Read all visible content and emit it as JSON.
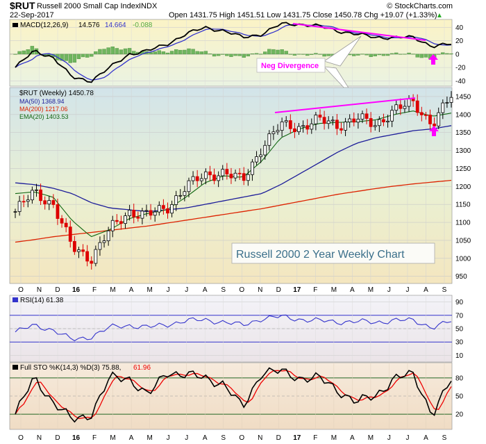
{
  "header": {
    "symbol": "$RUT",
    "name": "Russell 2000 Small Cap Index",
    "exchange": "INDX",
    "date": "22-Sep-2017",
    "ohlc": "Open 1431.75  High 1451.51  Low 1431.75  Close 1450.78  Chg +19.07 (+1.33%)",
    "change_arrow": "▲",
    "credit": "© StockCharts.com"
  },
  "macd": {
    "legend_title": "MACD(12,26,9)",
    "macd_value": "14.576",
    "signal_value": "14.664",
    "hist_value": "-0.088",
    "colors": {
      "macd": "#000000",
      "signal": "#3333cc",
      "hist": "#55aa44",
      "divergence": "#ff00ff"
    },
    "y_ticks": [
      40,
      20,
      0,
      -20,
      -40
    ],
    "ylim": [
      -48,
      52
    ]
  },
  "annotations": {
    "neg_divergence": "Neg Divergence",
    "chart_title": "Russell 2000 2 Year Weekly Chart"
  },
  "price": {
    "legend_title": "$RUT (Weekly) 1450.78",
    "ma50": "MA(50) 1368.94",
    "ma200": "MA(200) 1217.06",
    "ema20": "EMA(20) 1403.53",
    "colors": {
      "ma50": "#1c1c99",
      "ma200": "#dd2200",
      "ema20": "#116611",
      "up": "#000000",
      "down": "#dd0000"
    },
    "y_ticks": [
      1450,
      1400,
      1350,
      1300,
      1250,
      1200,
      1150,
      1100,
      1050,
      1000,
      950
    ],
    "ylim": [
      930,
      1475
    ]
  },
  "month_labels": [
    "O",
    "N",
    "D",
    "16",
    "F",
    "M",
    "A",
    "M",
    "J",
    "J",
    "A",
    "S",
    "O",
    "N",
    "D",
    "17",
    "F",
    "M",
    "A",
    "M",
    "J",
    "J",
    "A",
    "S"
  ],
  "rsi": {
    "legend": "RSI(14) 61.38",
    "y_ticks": [
      90,
      70,
      50,
      30,
      10
    ],
    "levels": [
      70,
      30
    ],
    "color": "#3333cc"
  },
  "sto": {
    "legend_k": "Full STO %K(14,3) %D(3) 75.88,",
    "legend_d": "61.96",
    "y_ticks": [
      80,
      50,
      20
    ],
    "levels": [
      80,
      20
    ],
    "colors": {
      "k": "#000000",
      "d": "#ee0000"
    }
  },
  "chart_data": {
    "type": "line",
    "title": "Russell 2000 2 Year Weekly Chart",
    "price_close_approx": {
      "x": [
        "Oct-15",
        "Nov-15",
        "Dec-15",
        "Jan-16",
        "Feb-16",
        "Mar-16",
        "Apr-16",
        "May-16",
        "Jun-16",
        "Jul-16",
        "Aug-16",
        "Sep-16",
        "Oct-16",
        "Nov-16",
        "Dec-16",
        "Jan-17",
        "Feb-17",
        "Mar-17",
        "Apr-17",
        "May-17",
        "Jun-17",
        "Jul-17",
        "Aug-17",
        "Sep-17"
      ],
      "values": [
        1130,
        1185,
        1150,
        1030,
        1000,
        1080,
        1130,
        1120,
        1140,
        1200,
        1230,
        1240,
        1215,
        1310,
        1370,
        1365,
        1385,
        1370,
        1390,
        1370,
        1415,
        1430,
        1375,
        1450
      ]
    },
    "series": [
      {
        "name": "MA(50)",
        "values": [
          1210,
          1205,
          1195,
          1180,
          1155,
          1140,
          1135,
          1130,
          1135,
          1140,
          1150,
          1160,
          1170,
          1180,
          1205,
          1235,
          1265,
          1295,
          1320,
          1335,
          1345,
          1355,
          1360,
          1369
        ]
      },
      {
        "name": "MA(200)",
        "values": [
          1045,
          1052,
          1060,
          1066,
          1072,
          1078,
          1084,
          1090,
          1098,
          1106,
          1114,
          1122,
          1130,
          1138,
          1148,
          1158,
          1168,
          1178,
          1186,
          1194,
          1201,
          1207,
          1212,
          1217
        ]
      },
      {
        "name": "EMA(20)",
        "values": [
          1180,
          1185,
          1170,
          1105,
          1060,
          1080,
          1110,
          1125,
          1135,
          1170,
          1210,
          1230,
          1225,
          1270,
          1335,
          1360,
          1375,
          1378,
          1380,
          1385,
          1400,
          1410,
          1395,
          1404
        ]
      },
      {
        "name": "MACD",
        "values": [
          -20,
          5,
          -5,
          -35,
          -40,
          -20,
          0,
          5,
          15,
          30,
          40,
          35,
          25,
          30,
          45,
          45,
          42,
          35,
          30,
          25,
          25,
          25,
          12,
          15
        ]
      },
      {
        "name": "RSI(14)",
        "values": [
          45,
          55,
          48,
          33,
          38,
          52,
          55,
          52,
          56,
          62,
          63,
          60,
          55,
          65,
          68,
          64,
          62,
          60,
          61,
          59,
          63,
          62,
          52,
          61
        ]
      },
      {
        "name": "STO %K",
        "values": [
          20,
          80,
          40,
          10,
          20,
          80,
          80,
          50,
          90,
          85,
          80,
          70,
          30,
          90,
          90,
          80,
          80,
          60,
          40,
          50,
          80,
          85,
          20,
          76
        ]
      }
    ]
  }
}
